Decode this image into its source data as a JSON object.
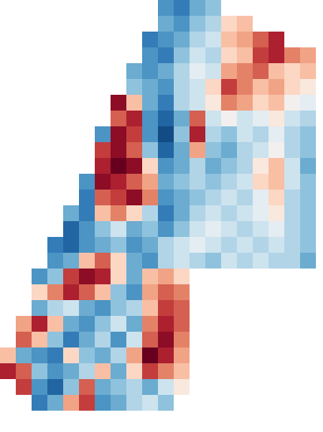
{
  "chart_data": {
    "type": "heatmap",
    "color": "RdBu",
    "tick_labels": false,
    "xlim": [
      0,
      409
    ],
    "ylim": [
      547,
      0
    ],
    "color_domain": [
      -1,
      1
    ],
    "x": [
      10,
      30,
      50,
      70,
      90,
      110,
      130,
      150,
      170,
      190,
      210,
      230,
      250,
      270,
      290,
      310,
      330,
      350,
      370,
      390
    ],
    "y": [
      10,
      30,
      50,
      70,
      90,
      110,
      130,
      150,
      170,
      190,
      210,
      230,
      250,
      270,
      290,
      310,
      330,
      350,
      370,
      390,
      410,
      430,
      450,
      470,
      490,
      510
    ],
    "values": [
      [
        null,
        null,
        null,
        null,
        null,
        null,
        null,
        null,
        null,
        null,
        -0.6,
        -0.7,
        -0.5,
        -0.4,
        null,
        null,
        null,
        null,
        null,
        null
      ],
      [
        null,
        null,
        null,
        null,
        null,
        null,
        null,
        null,
        null,
        null,
        -0.5,
        -0.6,
        -0.4,
        -0.3,
        0.2,
        0.3,
        null,
        null,
        null,
        null
      ],
      [
        null,
        null,
        null,
        null,
        null,
        null,
        null,
        null,
        null,
        -0.7,
        -0.6,
        -0.5,
        -0.3,
        -0.2,
        0.3,
        0.4,
        0.6,
        0.8,
        null,
        null
      ],
      [
        null,
        null,
        null,
        null,
        null,
        null,
        null,
        null,
        null,
        -0.6,
        -0.7,
        -0.4,
        -0.2,
        -0.3,
        0.2,
        0.3,
        0.7,
        0.8,
        0.5,
        0.4
      ],
      [
        null,
        null,
        null,
        null,
        null,
        null,
        null,
        null,
        -0.5,
        -0.6,
        -0.5,
        -0.3,
        -0.1,
        -0.2,
        0.4,
        0.5,
        0.6,
        0.3,
        0.2,
        0.3
      ],
      [
        null,
        null,
        null,
        null,
        null,
        null,
        null,
        null,
        -0.4,
        -0.5,
        -0.6,
        -0.3,
        -0.2,
        0.2,
        0.7,
        0.5,
        0.3,
        0.4,
        0.2,
        0.1
      ],
      [
        null,
        null,
        null,
        null,
        null,
        null,
        null,
        0.9,
        0.3,
        -0.5,
        -0.7,
        -0.3,
        -0.2,
        0.1,
        0.5,
        0.4,
        0.2,
        0.3,
        0.0,
        -0.1
      ],
      [
        null,
        null,
        null,
        null,
        null,
        null,
        null,
        0.6,
        0.8,
        -0.6,
        -0.8,
        -0.5,
        0.6,
        -0.2,
        0.0,
        -0.2,
        -0.1,
        0.1,
        -0.2,
        -0.3
      ],
      [
        null,
        null,
        null,
        null,
        null,
        null,
        -0.6,
        0.9,
        0.7,
        -0.6,
        -0.9,
        -0.4,
        0.8,
        -0.3,
        -0.4,
        -0.2,
        -0.3,
        -0.1,
        -0.3,
        -0.4
      ],
      [
        null,
        null,
        null,
        null,
        null,
        null,
        0.7,
        0.9,
        0.6,
        -0.4,
        -0.8,
        -0.5,
        0.4,
        -0.4,
        -0.5,
        -0.3,
        -0.2,
        0.0,
        -0.3,
        -0.4
      ],
      [
        null,
        null,
        null,
        null,
        null,
        null,
        0.8,
        1.0,
        0.9,
        0.2,
        -0.6,
        -0.5,
        -0.3,
        -0.5,
        -0.4,
        -0.3,
        0.1,
        0.3,
        -0.2,
        -0.5
      ],
      [
        null,
        null,
        null,
        null,
        null,
        -0.6,
        0.9,
        0.8,
        0.6,
        0.4,
        -0.5,
        -0.4,
        -0.3,
        -0.4,
        -0.3,
        -0.2,
        0.2,
        0.3,
        -0.2,
        -0.4
      ],
      [
        null,
        null,
        null,
        null,
        null,
        -0.7,
        0.6,
        0.7,
        0.9,
        0.5,
        -0.6,
        -0.5,
        -0.4,
        -0.3,
        -0.2,
        -0.3,
        -0.1,
        0.2,
        -0.3,
        -0.4
      ],
      [
        null,
        null,
        null,
        null,
        -0.5,
        -0.7,
        0.3,
        0.5,
        0.2,
        -0.3,
        -0.7,
        -0.5,
        -0.3,
        -0.2,
        -0.3,
        -0.2,
        -0.1,
        0.1,
        -0.3,
        -0.4
      ],
      [
        null,
        null,
        null,
        null,
        -0.8,
        -0.6,
        -0.4,
        -0.2,
        -0.5,
        -0.4,
        -0.6,
        -0.4,
        -0.2,
        -0.1,
        -0.2,
        -0.3,
        -0.2,
        -0.1,
        -0.3,
        -0.4
      ],
      [
        null,
        null,
        null,
        -0.7,
        -0.8,
        -0.6,
        -0.5,
        -0.4,
        -0.6,
        -0.5,
        -0.3,
        -0.2,
        -0.1,
        -0.2,
        -0.3,
        -0.2,
        -0.3,
        -0.2,
        -0.3,
        -0.4
      ],
      [
        null,
        null,
        null,
        -0.6,
        -0.5,
        0.3,
        0.6,
        0.2,
        -0.5,
        -0.6,
        -0.3,
        -0.2,
        -0.3,
        -0.4,
        -0.2,
        -0.3,
        -0.2,
        -0.3,
        -0.3,
        -0.5
      ],
      [
        null,
        null,
        -0.6,
        -0.4,
        0.7,
        0.9,
        0.8,
        0.2,
        -0.5,
        0.3,
        0.4,
        0.2,
        null,
        null,
        null,
        null,
        null,
        null,
        null,
        null
      ],
      [
        null,
        null,
        0.2,
        0.5,
        0.8,
        0.6,
        0.3,
        -0.4,
        -0.6,
        0.4,
        0.6,
        0.5,
        null,
        null,
        null,
        null,
        null,
        null,
        null,
        null
      ],
      [
        null,
        null,
        -0.5,
        -0.3,
        -0.2,
        -0.5,
        -0.6,
        -0.4,
        -0.3,
        0.3,
        0.7,
        0.6,
        null,
        null,
        null,
        null,
        null,
        null,
        null,
        null
      ],
      [
        null,
        0.4,
        0.8,
        0.3,
        -0.5,
        -0.6,
        -0.4,
        -0.2,
        -0.5,
        0.5,
        0.8,
        0.6,
        null,
        null,
        null,
        null,
        null,
        null,
        null,
        null
      ],
      [
        null,
        0.6,
        0.3,
        -0.4,
        -0.7,
        -0.5,
        -0.3,
        -0.6,
        -0.2,
        0.6,
        0.9,
        0.5,
        null,
        null,
        null,
        null,
        null,
        null,
        null,
        null
      ],
      [
        0.3,
        -0.5,
        -0.6,
        -0.7,
        0.2,
        -0.4,
        -0.5,
        -0.3,
        0.4,
        1.0,
        0.8,
        0.4,
        null,
        null,
        null,
        null,
        null,
        null,
        null,
        null
      ],
      [
        0.8,
        0.6,
        -0.4,
        -0.6,
        -0.5,
        -0.3,
        0.3,
        -0.5,
        0.2,
        0.7,
        0.5,
        0.3,
        null,
        null,
        null,
        null,
        null,
        null,
        null,
        null
      ],
      [
        null,
        0.7,
        -0.6,
        -0.8,
        -0.4,
        0.6,
        -0.5,
        -0.4,
        -0.3,
        -0.5,
        -0.2,
        0.1,
        null,
        null,
        null,
        null,
        null,
        null,
        null,
        null
      ],
      [
        null,
        null,
        -0.7,
        -0.5,
        0.4,
        0.7,
        -0.6,
        -0.5,
        -0.3,
        -0.2,
        -0.4,
        null,
        null,
        null,
        null,
        null,
        null,
        null,
        null,
        null
      ]
    ]
  }
}
